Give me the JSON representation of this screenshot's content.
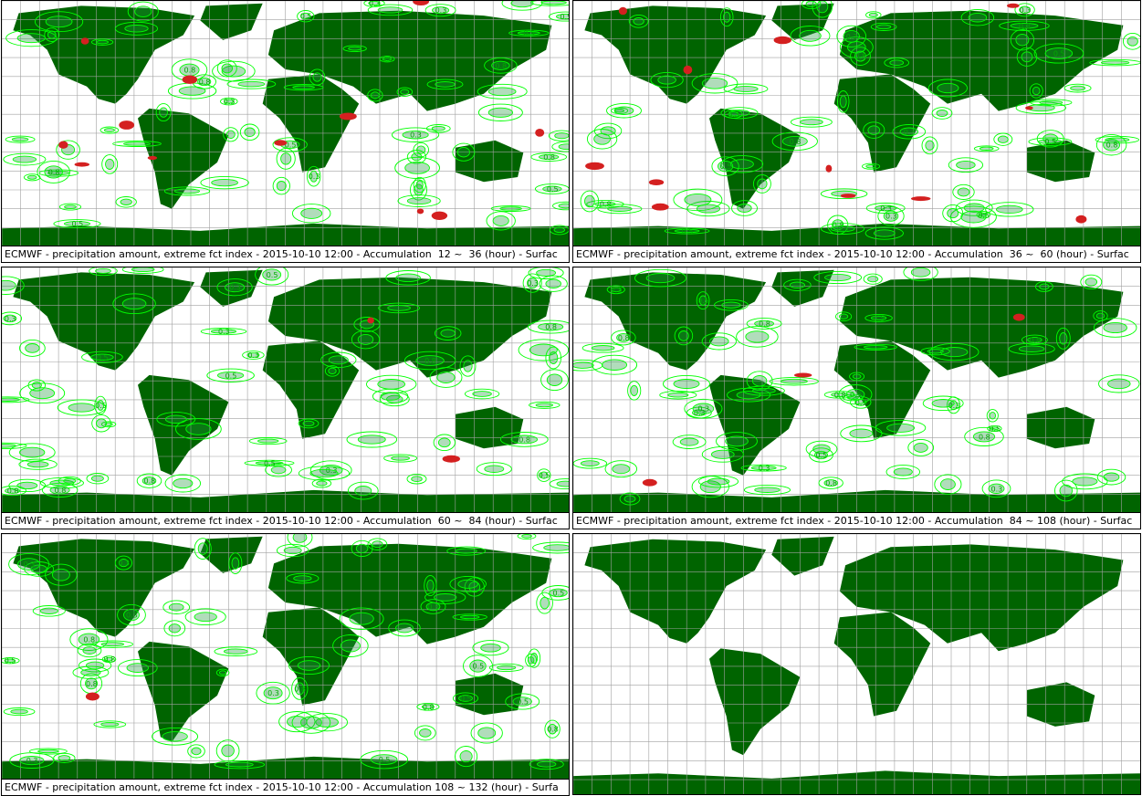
{
  "colors": {
    "land": "#006400",
    "contour": "#00ff00",
    "contour_dark": "#1f9c3c",
    "extreme": "#d42020",
    "grid": "#a0a0a0"
  },
  "panels": [
    {
      "caption": "ECMWF - precipitation amount, extreme fct index - 2015-10-10 12:00 - Accumulation  12 ~  36 (hour) - Surfac",
      "has_data": true,
      "labels": [
        "0.3",
        "0.8",
        "0.5"
      ]
    },
    {
      "caption": "ECMWF - precipitation amount, extreme fct index - 2015-10-10 12:00 - Accumulation  36 ~  60 (hour) - Surfac",
      "has_data": true,
      "labels": [
        "0.3",
        "0.8",
        "0.5"
      ]
    },
    {
      "caption": "ECMWF - precipitation amount, extreme fct index - 2015-10-10 12:00 - Accumulation  60 ~  84 (hour) - Surfac",
      "has_data": true,
      "labels": [
        "0.3",
        "0.8",
        "0.5"
      ]
    },
    {
      "caption": "ECMWF - precipitation amount, extreme fct index - 2015-10-10 12:00 - Accumulation  84 ~ 108 (hour) - Surfac",
      "has_data": true,
      "labels": [
        "0.3",
        "0.8",
        "0.5"
      ]
    },
    {
      "caption": "ECMWF - precipitation amount, extreme fct index - 2015-10-10 12:00 - Accumulation 108 ~ 132 (hour) - Surfa",
      "has_data": true,
      "labels": [
        "0.3",
        "0.8",
        "0.5"
      ]
    },
    {
      "caption": "",
      "has_data": false,
      "labels": []
    }
  ]
}
